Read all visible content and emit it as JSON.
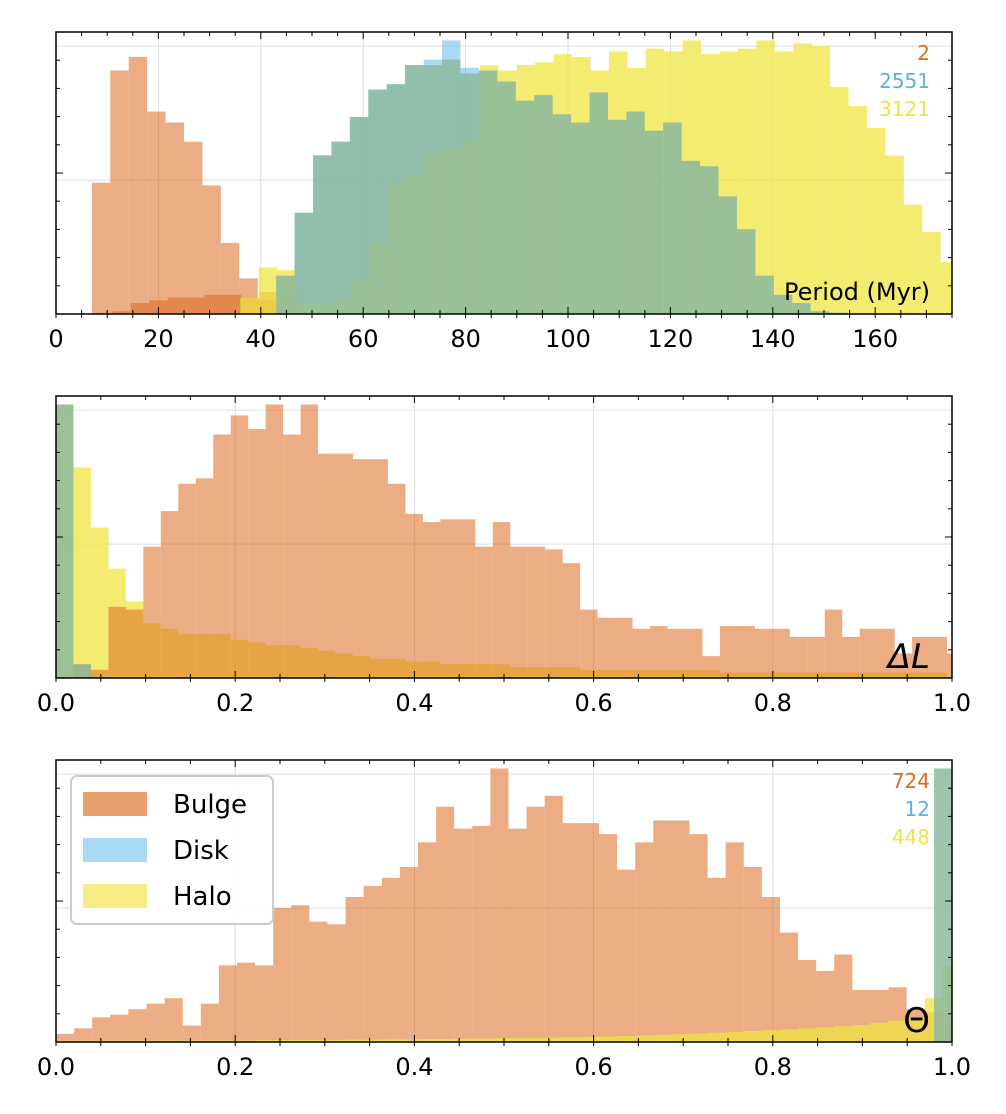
{
  "colors": {
    "bulge": "#dd6a1f",
    "disk": "#56b4e9",
    "halo": "#f0e442",
    "grid": "#bbbbbb",
    "axis": "#000000"
  },
  "legend": {
    "placement": "top-left",
    "panel": 2,
    "items": [
      {
        "label": "Bulge",
        "color": "#dd6a1f"
      },
      {
        "label": "Disk",
        "color": "#56b4e9"
      },
      {
        "label": "Halo",
        "color": "#f0e442"
      }
    ]
  },
  "chart_data": [
    {
      "type": "bar",
      "xlabel": "Period (Myr)",
      "xlim": [
        0,
        175
      ],
      "ylim": [
        0,
        1
      ],
      "xticks": [
        0,
        20,
        40,
        60,
        80,
        100,
        120,
        140,
        160
      ],
      "xtick_labels": [
        "0",
        "20",
        "40",
        "60",
        "80",
        "100",
        "120",
        "140",
        "160"
      ],
      "grid": true,
      "counts": [
        {
          "value": "2",
          "color": "#dd6a1f"
        },
        {
          "value": "2551",
          "color": "#56b4e9"
        },
        {
          "value": "3121",
          "color": "#f0e442"
        }
      ],
      "series": [
        {
          "name": "Bulge",
          "color": "#dd6a1f",
          "start": 7,
          "width": 3.6,
          "values": [
            0.48,
            0.89,
            0.94,
            0.74,
            0.7,
            0.63,
            0.47,
            0.26,
            0.13,
            0.05,
            0.0,
            0.0,
            0.0,
            0.0,
            0.0,
            0.0,
            0.0,
            0.0,
            0.0,
            0.0
          ]
        },
        {
          "name": "Bulge",
          "color": "#dd6a1f",
          "start": 11,
          "width": 3.6,
          "values": [
            0.01,
            0.04,
            0.05,
            0.06,
            0.06,
            0.07,
            0.07,
            0.06,
            0.08,
            0.07
          ]
        },
        {
          "name": "Disk",
          "color": "#56b4e9",
          "start": 43,
          "width": 3.6,
          "values": [
            0.14,
            0.37,
            0.58,
            0.63,
            0.72,
            0.82,
            0.84,
            0.91,
            0.93,
            1.0,
            0.9,
            0.89,
            0.85,
            0.78,
            0.8,
            0.73,
            0.7,
            0.81,
            0.71,
            0.74,
            0.67,
            0.7,
            0.56,
            0.54,
            0.43,
            0.31,
            0.14,
            0.07,
            0.04,
            0.01,
            0.005,
            0.002
          ]
        },
        {
          "name": "Halo",
          "color": "#f0e442",
          "start": 36,
          "width": 3.6,
          "values": [
            0.06,
            0.17,
            0.16,
            0.04,
            0.04,
            0.05,
            0.13,
            0.26,
            0.48,
            0.51,
            0.59,
            0.61,
            0.63,
            0.91,
            0.89,
            0.91,
            0.92,
            0.95,
            0.94,
            0.89,
            0.96,
            0.9,
            0.97,
            0.96,
            1.03,
            0.95,
            0.96,
            0.97,
            1.03,
            0.96,
            0.99,
            0.98,
            0.83,
            0.76,
            0.68,
            0.58,
            0.4,
            0.3,
            0.19,
            0.12,
            0.1,
            0.09,
            0.07
          ]
        },
        {
          "name": "Overlap",
          "color": "#8dba9d",
          "start": 43,
          "width": 3.6,
          "values": [
            0.14,
            0.37,
            0.58,
            0.63,
            0.72,
            0.82,
            0.84,
            0.91,
            0.91,
            0.93,
            0.88,
            0.89,
            0.85,
            0.78,
            0.8,
            0.73,
            0.7,
            0.81,
            0.71,
            0.74,
            0.67,
            0.7,
            0.56,
            0.54,
            0.43,
            0.31,
            0.14,
            0.07,
            0.04,
            0.01,
            0.005,
            0.002
          ]
        }
      ]
    },
    {
      "type": "bar",
      "xlabel": "ΔL",
      "xlim": [
        0,
        1
      ],
      "ylim": [
        0,
        1
      ],
      "xticks": [
        0,
        0.2,
        0.4,
        0.6,
        0.8,
        1.0
      ],
      "xtick_labels": [
        "0.0",
        "0.2",
        "0.4",
        "0.6",
        "0.8",
        "1.0"
      ],
      "grid": true,
      "series": [
        {
          "name": "Halo",
          "color": "#f0e442",
          "start": 0,
          "width": 0.0195,
          "values": [
            1.0,
            0.77,
            0.55,
            0.4,
            0.28,
            0.2,
            0.18,
            0.16,
            0.16,
            0.16,
            0.14,
            0.13,
            0.12,
            0.12,
            0.11,
            0.1,
            0.09,
            0.08,
            0.07,
            0.07,
            0.06,
            0.06,
            0.05,
            0.05,
            0.05,
            0.05,
            0.04,
            0.04,
            0.04,
            0.04,
            0.03,
            0.03,
            0.03,
            0.03,
            0.03,
            0.03,
            0.03,
            0.03,
            0.02,
            0.02,
            0.02,
            0.02,
            0.02,
            0.02,
            0.02,
            0.02,
            0.02,
            0.02,
            0.02,
            0.02,
            0.02
          ]
        },
        {
          "name": "Bulge",
          "color": "#dd6a1f",
          "start": 0.0195,
          "width": 0.0195,
          "values": [
            0.05,
            0.03,
            0.26,
            0.25,
            0.48,
            0.61,
            0.71,
            0.73,
            0.89,
            0.96,
            0.91,
            1.0,
            0.89,
            1.0,
            0.82,
            0.82,
            0.8,
            0.8,
            0.71,
            0.6,
            0.57,
            0.58,
            0.58,
            0.48,
            0.57,
            0.48,
            0.48,
            0.47,
            0.42,
            0.25,
            0.22,
            0.22,
            0.18,
            0.19,
            0.18,
            0.18,
            0.08,
            0.19,
            0.19,
            0.18,
            0.18,
            0.15,
            0.15,
            0.25,
            0.15,
            0.18,
            0.18,
            0.09,
            0.15,
            0.15,
            0.09,
            0.04,
            0.04
          ]
        },
        {
          "name": "Overlap",
          "color": "#8dba9d",
          "start": 0,
          "width": 0.0195,
          "values": [
            1.0,
            0.05
          ]
        }
      ]
    },
    {
      "type": "bar",
      "xlabel": "Θ",
      "xlim": [
        0,
        1
      ],
      "ylim": [
        0,
        1
      ],
      "xticks": [
        0,
        0.2,
        0.4,
        0.6,
        0.8,
        1.0
      ],
      "xtick_labels": [
        "0.0",
        "0.2",
        "0.4",
        "0.6",
        "0.8",
        "1.0"
      ],
      "grid": true,
      "counts": [
        {
          "value": "724",
          "color": "#dd6a1f"
        },
        {
          "value": "12",
          "color": "#56b4e9"
        },
        {
          "value": "448",
          "color": "#f0e442"
        }
      ],
      "series": [
        {
          "name": "Bulge",
          "color": "#dd6a1f",
          "start": 0,
          "width": 0.0202,
          "values": [
            0.03,
            0.05,
            0.09,
            0.1,
            0.12,
            0.14,
            0.16,
            0.06,
            0.14,
            0.28,
            0.29,
            0.28,
            0.49,
            0.5,
            0.44,
            0.43,
            0.53,
            0.57,
            0.6,
            0.64,
            0.73,
            0.86,
            0.78,
            0.79,
            1.0,
            0.78,
            0.86,
            0.9,
            0.8,
            0.8,
            0.76,
            0.63,
            0.73,
            0.81,
            0.81,
            0.76,
            0.6,
            0.73,
            0.64,
            0.53,
            0.4,
            0.3,
            0.26,
            0.32,
            0.19,
            0.19,
            0.2,
            0.12,
            0.11,
            0.07,
            0.07
          ]
        },
        {
          "name": "Halo",
          "color": "#f0e442",
          "start": 0.0,
          "width": 0.0202,
          "values": [
            0.005,
            0.005,
            0.005,
            0.005,
            0.005,
            0.005,
            0.006,
            0.006,
            0.006,
            0.006,
            0.006,
            0.007,
            0.007,
            0.007,
            0.008,
            0.008,
            0.009,
            0.009,
            0.01,
            0.01,
            0.011,
            0.011,
            0.012,
            0.012,
            0.013,
            0.014,
            0.015,
            0.016,
            0.017,
            0.018,
            0.02,
            0.022,
            0.024,
            0.026,
            0.028,
            0.031,
            0.034,
            0.037,
            0.04,
            0.043,
            0.046,
            0.05,
            0.054,
            0.058,
            0.062,
            0.07,
            0.078,
            0.09,
            0.16,
            0.28,
            1.0
          ]
        },
        {
          "name": "Overlap",
          "color": "#8dba9d",
          "start": 0.98,
          "width": 0.0202,
          "values": [
            1.0
          ]
        }
      ]
    }
  ]
}
